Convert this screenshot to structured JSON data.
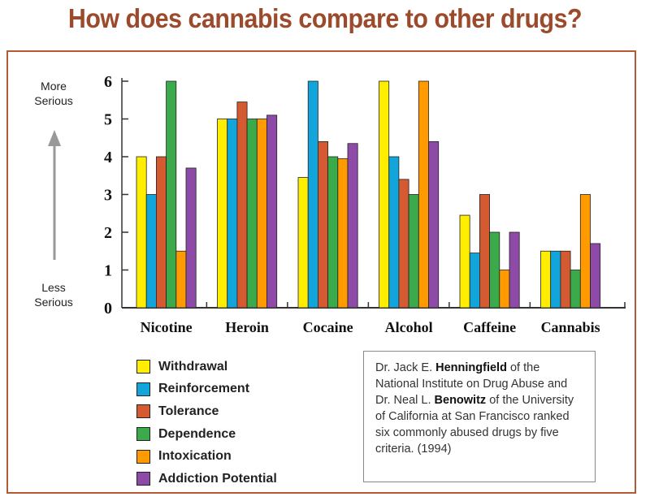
{
  "title": "How does cannabis compare to other drugs?",
  "axis_annotations": {
    "more_line1": "More",
    "more_line2": "Serious",
    "less_line1": "Less",
    "less_line2": "Serious"
  },
  "colors": {
    "title": "#9c4a2c",
    "frame": "#b55a35",
    "series": [
      "#ffee00",
      "#12a5db",
      "#d45a32",
      "#3aaa4a",
      "#ff9a00",
      "#8d4aa6"
    ]
  },
  "chart_data": {
    "type": "bar",
    "title": "How does cannabis compare to other drugs?",
    "xlabel": "",
    "ylabel": "",
    "ylim": [
      0,
      6
    ],
    "yticks": [
      0,
      1,
      2,
      3,
      4,
      5,
      6
    ],
    "categories": [
      "Nicotine",
      "Heroin",
      "Cocaine",
      "Alcohol",
      "Caffeine",
      "Cannabis"
    ],
    "series": [
      {
        "name": "Withdrawal",
        "values": [
          4.0,
          5.0,
          3.45,
          6.0,
          2.45,
          1.5
        ]
      },
      {
        "name": "Reinforcement",
        "values": [
          3.0,
          5.0,
          6.0,
          4.0,
          1.45,
          1.5
        ]
      },
      {
        "name": "Tolerance",
        "values": [
          4.0,
          5.45,
          4.4,
          3.4,
          3.0,
          1.5
        ]
      },
      {
        "name": "Dependence",
        "values": [
          6.0,
          5.0,
          4.0,
          3.0,
          2.0,
          1.0
        ]
      },
      {
        "name": "Intoxication",
        "values": [
          1.5,
          5.0,
          3.95,
          6.0,
          1.0,
          3.0
        ]
      },
      {
        "name": "Addiction Potential",
        "values": [
          3.7,
          5.1,
          4.35,
          4.4,
          2.0,
          1.7
        ]
      }
    ],
    "legend": "bottom-left"
  },
  "note": {
    "t1": "Dr. Jack E. ",
    "b1": "Henningfield",
    "t2": " of the National Institute on Drug Abuse and Dr. Neal L. ",
    "b2": "Benowitz",
    "t3": " of the University of California at San Francisco ranked six commonly abused drugs by five criteria. (1994)"
  }
}
